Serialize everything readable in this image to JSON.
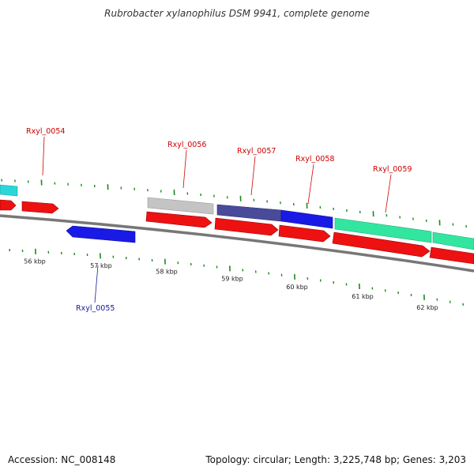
{
  "title": "Rubrobacter xylanophilus DSM 9941, complete genome",
  "footer": {
    "accession": "Accession: NC_008148",
    "topology": "Topology: circular; Length: 3,225,748 bp; Genes: 3,203"
  },
  "colors": {
    "forward_cds": "#ee1111",
    "reverse_cds": "#1a1ae6",
    "label_forward": "#cc0000",
    "label_reverse": "#1a1aa0",
    "cyan_feature": "#2cd6d6",
    "gray_feature": "#c4c4c4",
    "slate_feature": "#4a4a9a",
    "mint_feature": "#33e6a0",
    "axis_line": "#8c8c8c",
    "tick_mark": "#1a8a1a"
  },
  "ticks": [
    {
      "label": "56 kbp"
    },
    {
      "label": "57 kbp"
    },
    {
      "label": "58 kbp"
    },
    {
      "label": "59 kbp"
    },
    {
      "label": "60 kbp"
    },
    {
      "label": "61 kbp"
    },
    {
      "label": "62 kbp"
    }
  ],
  "gene_labels": [
    {
      "id": "rxyl-0054",
      "text": "Rxyl_0054",
      "strand": "forward"
    },
    {
      "id": "rxyl-0055",
      "text": "Rxyl_0055",
      "strand": "reverse"
    },
    {
      "id": "rxyl-0056",
      "text": "Rxyl_0056",
      "strand": "forward"
    },
    {
      "id": "rxyl-0057",
      "text": "Rxyl_0057",
      "strand": "forward"
    },
    {
      "id": "rxyl-0058",
      "text": "Rxyl_0058",
      "strand": "forward"
    },
    {
      "id": "rxyl-0059",
      "text": "Rxyl_0059",
      "strand": "forward"
    }
  ]
}
